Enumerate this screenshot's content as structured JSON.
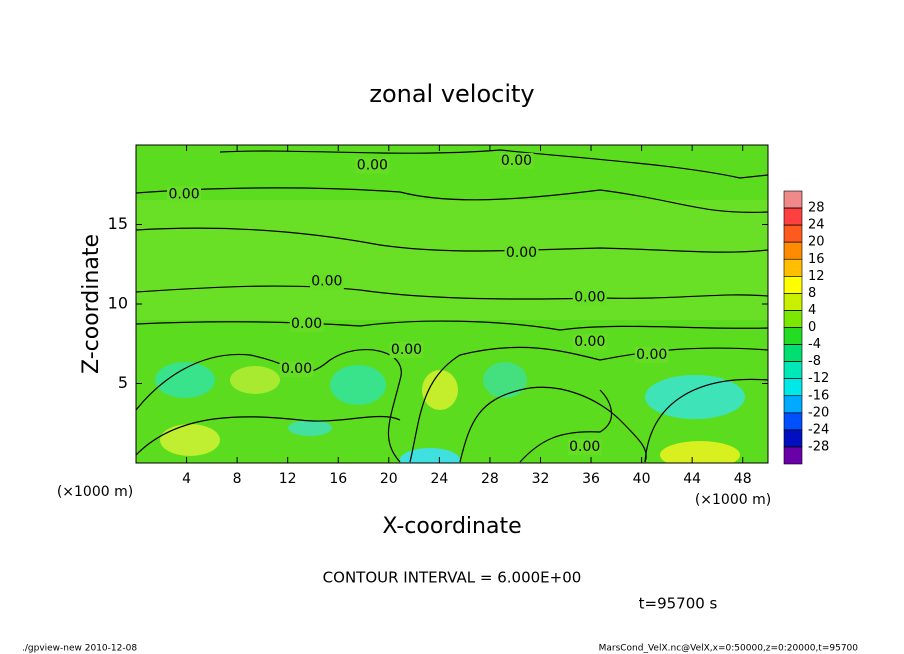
{
  "chart_data": {
    "type": "contour",
    "title": "zonal velocity",
    "x_label": "X-coordinate",
    "y_label": "Z-coordinate",
    "x_unit": "(×1000 m)",
    "y_unit": "(×1000 m)",
    "xlim": [
      0,
      50
    ],
    "xticks": [
      4,
      8,
      12,
      16,
      20,
      24,
      28,
      32,
      36,
      40,
      44,
      48
    ],
    "ylim": [
      0,
      20
    ],
    "yticks": [
      5,
      10,
      15
    ],
    "contour_labels": [
      {
        "value": 0,
        "label": "0.00",
        "x": 3.8,
        "y": 16.9
      },
      {
        "value": 0,
        "label": "0.00",
        "x": 18.7,
        "y": 18.7
      },
      {
        "value": 0,
        "label": "0.00",
        "x": 30.1,
        "y": 19.0
      },
      {
        "value": 0,
        "label": "0.00",
        "x": 30.5,
        "y": 13.2
      },
      {
        "value": 0,
        "label": "0.00",
        "x": 15.1,
        "y": 11.4
      },
      {
        "value": 0,
        "label": "0.00",
        "x": 35.9,
        "y": 10.4
      },
      {
        "value": 0,
        "label": "0.00",
        "x": 13.5,
        "y": 8.75
      },
      {
        "value": 0,
        "label": "0.00",
        "x": 21.4,
        "y": 7.1
      },
      {
        "value": 0,
        "label": "0.00",
        "x": 35.9,
        "y": 7.6
      },
      {
        "value": 0,
        "label": "0.00",
        "x": 40.8,
        "y": 6.8
      },
      {
        "value": 0,
        "label": "0.00",
        "x": 12.7,
        "y": 5.9
      },
      {
        "value": 0,
        "label": "0.00",
        "x": 35.5,
        "y": 1.0
      }
    ],
    "colorbar": {
      "levels": [
        28,
        24,
        20,
        16,
        12,
        8,
        4,
        0,
        -4,
        -8,
        -12,
        -16,
        -20,
        -24,
        -28
      ],
      "colors": [
        "#f08a8a",
        "#ff4040",
        "#ff5a1e",
        "#ff8c00",
        "#ffbf00",
        "#ffff00",
        "#c8f000",
        "#7ae800",
        "#22dd22",
        "#00e070",
        "#00e8b8",
        "#00e8e8",
        "#00aaff",
        "#0050ff",
        "#0010c0",
        "#6a00a8"
      ]
    },
    "annotations": [
      "CONTOUR INTERVAL = 6.000E+00",
      "t=95700 s"
    ],
    "footer_left": "./gpview-new  2010-12-08",
    "footer_right": "MarsCond_VelX.nc@VelX,x=0:50000,z=0:20000,t=95700"
  }
}
